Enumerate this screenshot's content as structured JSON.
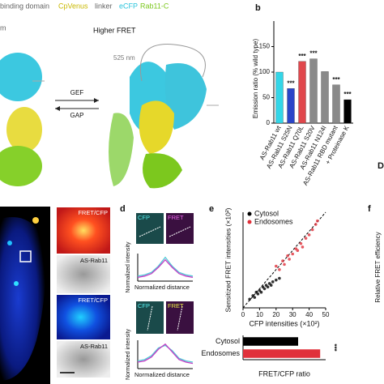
{
  "figure": {
    "header": {
      "binding": "binding domain",
      "cpvenus": "CpVenus",
      "linker": "linker",
      "ecfp": "eCFP",
      "rab11": "Rab11-C",
      "unit_fragment": "m",
      "state": "Higher FRET",
      "wavelength": "525 nm",
      "gef": "GEF",
      "gap": "GAP"
    },
    "panel_labels": {
      "b": "b",
      "d": "d",
      "e": "e",
      "f": "f"
    },
    "edge_fragment": "D",
    "panel_c": {
      "tiles": [
        "FRET/CFP",
        "AS-Rab11",
        "FRET/CFP",
        "AS-Rab11"
      ]
    },
    "panel_d": {
      "tiles": [
        "CFP",
        "FRET",
        "CFP",
        "FRET"
      ]
    },
    "panel_f": {
      "y_label": "Relative FRET efficiency"
    }
  },
  "chart_data": [
    {
      "type": "bar",
      "y_label": "Emission ratio (% wild type)",
      "categories": [
        "AS-Rab11 wt",
        "AS-Rab11 S25N",
        "AS-Rab11 Q70L",
        "AS-Rab11 S20V",
        "AS-Rab11 N124I",
        "AS-Rab11 RBD mutant",
        "+ Proteinase K"
      ],
      "values": [
        100,
        68,
        121,
        126,
        101,
        75,
        46
      ],
      "colors": [
        "#33d6e8",
        "#2a45c8",
        "#e0474c",
        "#8a8a8a",
        "#8a8a8a",
        "#8a8a8a",
        "#000000"
      ],
      "ylim": [
        0,
        200
      ],
      "yticks": [
        0,
        50,
        100,
        150
      ],
      "annotations": [
        {
          "category": "AS-Rab11 S25N",
          "text": "***"
        },
        {
          "category": "AS-Rab11 Q70L",
          "text": "***"
        },
        {
          "category": "AS-Rab11 S20V",
          "text": "***"
        },
        {
          "category": "AS-Rab11 RBD mutant",
          "text": "***"
        },
        {
          "category": "+ Proteinase K",
          "text": "***"
        }
      ]
    },
    {
      "type": "line",
      "y_label": "Normalized intensity",
      "x_label": "Normalized distance",
      "x": [
        0,
        0.125,
        0.25,
        0.375,
        0.5,
        0.625,
        0.75,
        0.875,
        1
      ],
      "xlim": [
        0,
        1
      ],
      "ylim": [
        0,
        1.1
      ],
      "series": [
        {
          "name": "CFP",
          "color": "#4fc9d6",
          "values": [
            0.2,
            0.25,
            0.35,
            0.6,
            0.95,
            0.6,
            0.35,
            0.25,
            0.2
          ]
        },
        {
          "name": "FRET",
          "color": "#c43bc4",
          "values": [
            0.15,
            0.2,
            0.3,
            0.55,
            0.85,
            0.55,
            0.3,
            0.2,
            0.15
          ]
        }
      ]
    },
    {
      "type": "line",
      "y_label": "Normalized intensity",
      "x_label": "Normalized distance",
      "x": [
        0,
        0.125,
        0.25,
        0.375,
        0.5,
        0.625,
        0.75,
        0.875,
        1
      ],
      "xlim": [
        0,
        1
      ],
      "ylim": [
        0,
        1.1
      ],
      "series": [
        {
          "name": "CFP",
          "color": "#4fc9d6",
          "values": [
            0.3,
            0.35,
            0.5,
            0.8,
            0.9,
            0.7,
            0.4,
            0.3,
            0.25
          ]
        },
        {
          "name": "FRET",
          "color": "#c43bc4",
          "values": [
            0.25,
            0.3,
            0.45,
            0.75,
            0.95,
            0.65,
            0.35,
            0.25,
            0.2
          ]
        }
      ]
    },
    {
      "type": "scatter",
      "y_label": "Sensitized FRET intensities (×10²)",
      "x_label": "CFP intensities (×10²)",
      "xlim": [
        0,
        50
      ],
      "xticks": [
        0,
        10,
        20,
        30,
        40,
        50
      ],
      "ylim": [
        0,
        55
      ],
      "series": [
        {
          "name": "Cytosol",
          "color": "#000000",
          "x": [
            4,
            6,
            7,
            8,
            9,
            10,
            11,
            12,
            13,
            14,
            15,
            16,
            17,
            18,
            20,
            22
          ],
          "values": [
            5,
            7,
            6,
            9,
            8,
            10,
            9,
            12,
            11,
            13,
            12,
            14,
            13,
            15,
            16,
            17
          ]
        },
        {
          "name": "Endosomes",
          "color": "#e0303a",
          "x": [
            20,
            22,
            24,
            25,
            27,
            28,
            30,
            32,
            33,
            35,
            36,
            38,
            40,
            42,
            44,
            45
          ],
          "values": [
            24,
            22,
            27,
            25,
            30,
            28,
            31,
            34,
            33,
            37,
            35,
            40,
            42,
            45,
            48,
            50
          ]
        }
      ]
    },
    {
      "type": "bar",
      "horizontal": true,
      "x_label": "FRET/CFP ratio",
      "categories": [
        "Cytosol",
        "Endosomes"
      ],
      "values": [
        1.0,
        1.4
      ],
      "colors": [
        "#000000",
        "#e0303a"
      ],
      "xlim": [
        0,
        1.5
      ],
      "annotations": [
        {
          "category": "Endosomes",
          "text": "***"
        }
      ]
    }
  ]
}
